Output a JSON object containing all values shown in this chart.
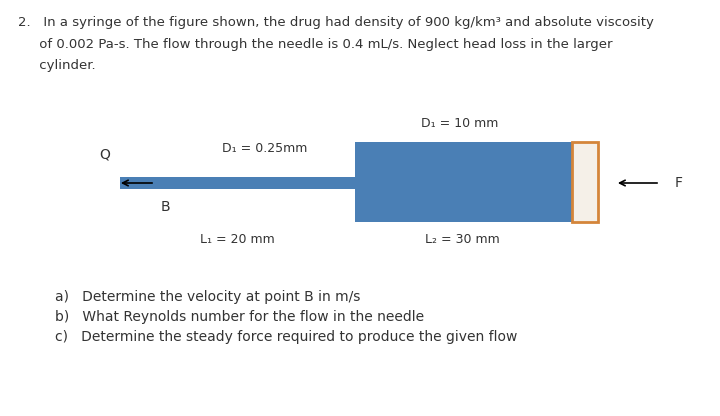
{
  "background_color": "#ffffff",
  "problem_text_line1": "2.   In a syringe of the figure shown, the drug had density of 900 kg/km³ and absolute viscosity",
  "problem_text_line2": "     of 0.002 Pa-s. The flow through the needle is 0.4 mL/s. Neglect head loss in the larger",
  "problem_text_line3": "     cylinder.",
  "label_D1_needle": "D₁ = 0.25mm",
  "label_D2_cylinder": "D₁ = 10 mm",
  "label_L1": "L₁ = 20 mm",
  "label_L2": "L₂ = 30 mm",
  "label_Q": "Q",
  "label_B": "B",
  "label_F": "F",
  "needle_color": "#4a7fb5",
  "cylinder_body_color": "#4a7fb5",
  "piston_face_color": "#f5f0e8",
  "piston_outline_color": "#d4853a",
  "questions": [
    "a)   Determine the velocity at point B in m/s",
    "b)   What Reynolds number for the flow in the needle",
    "c)   Determine the steady force required to produce the given flow"
  ],
  "font_size_text": 9.5,
  "font_size_labels": 9,
  "font_size_q": 10,
  "text_color": "#333333"
}
